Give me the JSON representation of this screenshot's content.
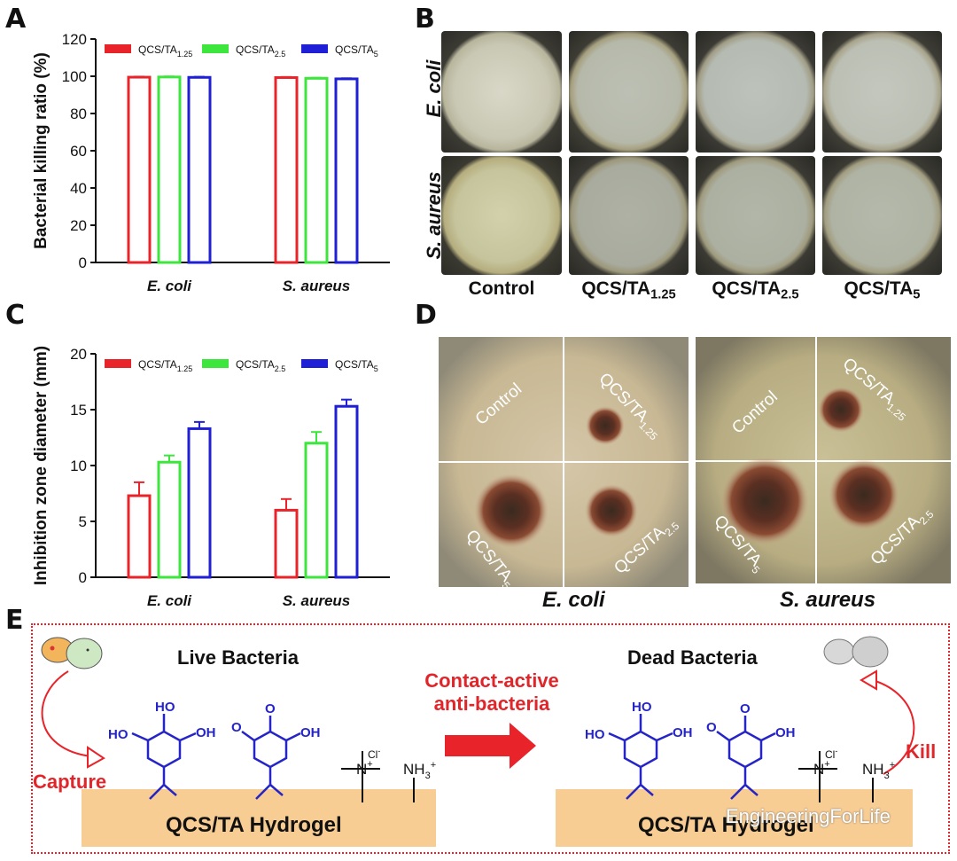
{
  "panels": {
    "a": "A",
    "b": "B",
    "c": "C",
    "d": "D",
    "e": "E"
  },
  "chart_data": [
    {
      "type": "bar",
      "title": "",
      "ylabel": "Bacterial killing ratio (%)",
      "xlabel": "",
      "categories": [
        "E. coli",
        "S. aureus"
      ],
      "ylim": [
        0,
        120
      ],
      "yticks": [
        0,
        20,
        40,
        60,
        80,
        100,
        120
      ],
      "legend": [
        "QCS/TA",
        "QCS/TA",
        "QCS/TA"
      ],
      "legend_subs": [
        "1.25",
        "2.5",
        "5"
      ],
      "series": [
        {
          "name": "QCS/TA1.25",
          "color": "#e8242a",
          "values": [
            99.5,
            99.3
          ],
          "err": [
            0.3,
            0.3
          ]
        },
        {
          "name": "QCS/TA2.5",
          "color": "#3ce63c",
          "values": [
            99.6,
            98.9
          ],
          "err": [
            0.3,
            0.3
          ]
        },
        {
          "name": "QCS/TA5",
          "color": "#1f1fd6",
          "values": [
            99.4,
            98.6
          ],
          "err": [
            0.3,
            0.3
          ]
        }
      ]
    },
    {
      "type": "bar",
      "title": "",
      "ylabel": "Inhibition zone diameter (mm)",
      "xlabel": "",
      "categories": [
        "E. coli",
        "S. aureus"
      ],
      "ylim": [
        0,
        20
      ],
      "yticks": [
        0,
        5,
        10,
        15,
        20
      ],
      "legend": [
        "QCS/TA",
        "QCS/TA",
        "QCS/TA"
      ],
      "legend_subs": [
        "1.25",
        "2.5",
        "5"
      ],
      "series": [
        {
          "name": "QCS/TA1.25",
          "color": "#e8242a",
          "values": [
            7.3,
            6.0
          ],
          "err": [
            1.2,
            1.0
          ]
        },
        {
          "name": "QCS/TA2.5",
          "color": "#3ce63c",
          "values": [
            10.3,
            12.0
          ],
          "err": [
            0.6,
            1.0
          ]
        },
        {
          "name": "QCS/TA5",
          "color": "#1f1fd6",
          "values": [
            13.3,
            15.3
          ],
          "err": [
            0.6,
            0.6
          ]
        }
      ]
    }
  ],
  "panelB": {
    "rows": [
      "E. coli",
      "S. aureus"
    ],
    "cols": [
      {
        "main": "Control",
        "sub": ""
      },
      {
        "main": "QCS/TA",
        "sub": "1.25"
      },
      {
        "main": "QCS/TA",
        "sub": "2.5"
      },
      {
        "main": "QCS/TA",
        "sub": "5"
      }
    ]
  },
  "panelD": {
    "control": "Control",
    "qcs": "QCS/TA",
    "sub125": "1.25",
    "sub25": "2.5",
    "sub5": "5",
    "species1": "E. coli",
    "species2": "S. aureus"
  },
  "panelE": {
    "live": "Live Bacteria",
    "dead": "Dead Bacteria",
    "contact1": "Contact-active",
    "contact2": "anti-bacteria",
    "capture": "Capture",
    "kill": "Kill",
    "hydrogel": "QCS/TA Hydrogel",
    "ho": "HO",
    "oh": "OH",
    "o": "O",
    "n": "N",
    "cl": "Cl",
    "nh3": "NH",
    "watermark": "EngineeringForLife"
  },
  "colors": {
    "red": "#e8242a",
    "green": "#3ce63c",
    "blue": "#1f1fd6",
    "hydrogel": "#f8cd94",
    "chem": "#2424c8"
  }
}
